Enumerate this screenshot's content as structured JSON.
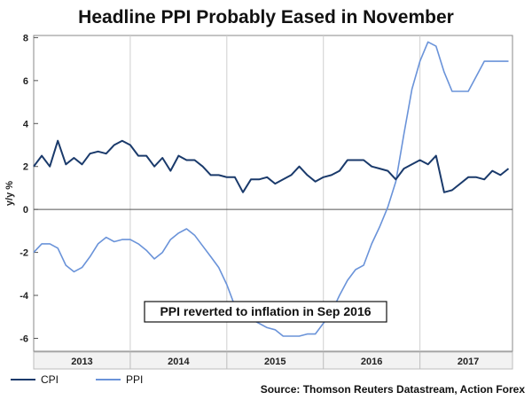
{
  "chart_data": {
    "type": "line",
    "title": "Headline PPI Probably Eased in November",
    "ylabel": "y/y %",
    "xlabel": "",
    "ylim": [
      -6.6,
      8.1
    ],
    "xlim": [
      0,
      59.5
    ],
    "yticks": [
      8,
      6,
      4,
      2,
      0,
      -2,
      -4,
      -6
    ],
    "year_labels": [
      {
        "label": "2013",
        "month_index": 6
      },
      {
        "label": "2014",
        "month_index": 18
      },
      {
        "label": "2015",
        "month_index": 30
      },
      {
        "label": "2016",
        "month_index": 42
      },
      {
        "label": "2017",
        "month_index": 54
      }
    ],
    "year_boundaries": [
      12,
      24,
      36,
      48
    ],
    "x_start": "Jan 2012 (approx.)",
    "series": [
      {
        "name": "CPI",
        "color": "#1a3a6b",
        "values": [
          2.0,
          2.5,
          2.0,
          3.2,
          2.1,
          2.4,
          2.1,
          2.6,
          2.7,
          2.6,
          3.0,
          3.2,
          3.0,
          2.5,
          2.5,
          2.0,
          2.4,
          1.8,
          2.5,
          2.3,
          2.3,
          2.0,
          1.6,
          1.6,
          1.5,
          1.5,
          0.8,
          1.4,
          1.4,
          1.5,
          1.2,
          1.4,
          1.6,
          2.0,
          1.6,
          1.3,
          1.5,
          1.6,
          1.8,
          2.3,
          2.3,
          2.3,
          2.0,
          1.9,
          1.8,
          1.4,
          1.9,
          2.1,
          2.3,
          2.1,
          2.5,
          0.8,
          0.9,
          1.2,
          1.5,
          1.5,
          1.4,
          1.8,
          1.6,
          1.9
        ]
      },
      {
        "name": "PPI",
        "color": "#6a93d9",
        "values": [
          -2.0,
          -1.6,
          -1.6,
          -1.8,
          -2.6,
          -2.9,
          -2.7,
          -2.2,
          -1.6,
          -1.3,
          -1.5,
          -1.4,
          -1.4,
          -1.6,
          -1.9,
          -2.3,
          -2.0,
          -1.4,
          -1.1,
          -0.9,
          -1.2,
          -1.7,
          -2.2,
          -2.7,
          -3.5,
          -4.5,
          -5.2,
          -5.1,
          -5.3,
          -5.5,
          -5.6,
          -5.9,
          -5.9,
          -5.9,
          -5.8,
          -5.8,
          -5.3,
          -4.8,
          -4.0,
          -3.3,
          -2.8,
          -2.6,
          -1.6,
          -0.8,
          0.1,
          1.3,
          3.5,
          5.6,
          6.9,
          7.8,
          7.6,
          6.4,
          5.5,
          5.5,
          5.5,
          6.2,
          6.9,
          6.9,
          6.9,
          6.9
        ]
      }
    ],
    "legend_position": "bottom-left",
    "annotation": "PPI reverted to inflation in Sep 2016",
    "source": "Source: Thomson Reuters Datastream, Action Forex"
  }
}
